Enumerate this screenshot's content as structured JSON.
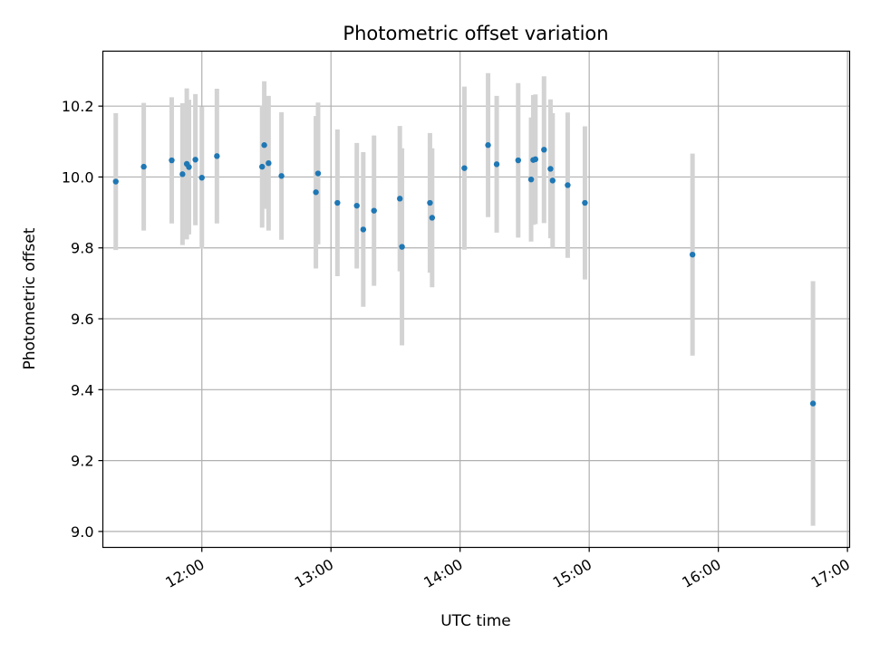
{
  "chart_data": {
    "type": "scatter",
    "title": "Photometric offset variation",
    "xlabel": "UTC time",
    "ylabel": "Photometric offset",
    "x_axis_type": "time",
    "xlim": [
      "11:14",
      "17:01"
    ],
    "ylim": [
      8.955,
      10.355
    ],
    "x_ticks": [
      "12:00",
      "13:00",
      "14:00",
      "15:00",
      "16:00",
      "17:00"
    ],
    "y_ticks": [
      "9.0",
      "9.2",
      "9.4",
      "9.6",
      "9.8",
      "10.0",
      "10.2"
    ],
    "y_tick_values": [
      9.0,
      9.2,
      9.4,
      9.6,
      9.8,
      10.0,
      10.2
    ],
    "grid": true,
    "marker_color": "#1f77b4",
    "errorbar_color": "#d3d3d3",
    "points": [
      {
        "x": "11:20",
        "y": 9.987,
        "err": 0.193
      },
      {
        "x": "11:33",
        "y": 10.029,
        "err": 0.18
      },
      {
        "x": "11:46",
        "y": 10.047,
        "err": 0.178
      },
      {
        "x": "11:51",
        "y": 10.008,
        "err": 0.2
      },
      {
        "x": "11:53",
        "y": 10.037,
        "err": 0.213
      },
      {
        "x": "11:54",
        "y": 10.028,
        "err": 0.19
      },
      {
        "x": "11:57",
        "y": 10.049,
        "err": 0.185
      },
      {
        "x": "12:00",
        "y": 9.998,
        "err": 0.2
      },
      {
        "x": "12:07",
        "y": 10.059,
        "err": 0.19
      },
      {
        "x": "12:28",
        "y": 10.029,
        "err": 0.172
      },
      {
        "x": "12:29",
        "y": 10.09,
        "err": 0.18
      },
      {
        "x": "12:31",
        "y": 10.039,
        "err": 0.19
      },
      {
        "x": "12:37",
        "y": 10.003,
        "err": 0.18
      },
      {
        "x": "12:53",
        "y": 9.957,
        "err": 0.215
      },
      {
        "x": "12:54",
        "y": 10.01,
        "err": 0.2
      },
      {
        "x": "13:03",
        "y": 9.927,
        "err": 0.207
      },
      {
        "x": "13:12",
        "y": 9.919,
        "err": 0.177
      },
      {
        "x": "13:15",
        "y": 9.852,
        "err": 0.218
      },
      {
        "x": "13:20",
        "y": 9.905,
        "err": 0.212
      },
      {
        "x": "13:32",
        "y": 9.939,
        "err": 0.205
      },
      {
        "x": "13:33",
        "y": 9.803,
        "err": 0.278
      },
      {
        "x": "13:46",
        "y": 9.927,
        "err": 0.197
      },
      {
        "x": "13:47",
        "y": 9.885,
        "err": 0.196
      },
      {
        "x": "14:02",
        "y": 10.025,
        "err": 0.23
      },
      {
        "x": "14:13",
        "y": 10.09,
        "err": 0.203
      },
      {
        "x": "14:17",
        "y": 10.036,
        "err": 0.193
      },
      {
        "x": "14:27",
        "y": 10.047,
        "err": 0.218
      },
      {
        "x": "14:33",
        "y": 9.993,
        "err": 0.175
      },
      {
        "x": "14:34",
        "y": 10.048,
        "err": 0.183
      },
      {
        "x": "14:35",
        "y": 10.05,
        "err": 0.183
      },
      {
        "x": "14:39",
        "y": 10.077,
        "err": 0.207
      },
      {
        "x": "14:42",
        "y": 10.023,
        "err": 0.196
      },
      {
        "x": "14:43",
        "y": 9.99,
        "err": 0.19
      },
      {
        "x": "14:50",
        "y": 9.977,
        "err": 0.205
      },
      {
        "x": "14:58",
        "y": 9.927,
        "err": 0.216
      },
      {
        "x": "15:48",
        "y": 9.781,
        "err": 0.285
      },
      {
        "x": "16:44",
        "y": 9.361,
        "err": 0.345
      }
    ]
  }
}
